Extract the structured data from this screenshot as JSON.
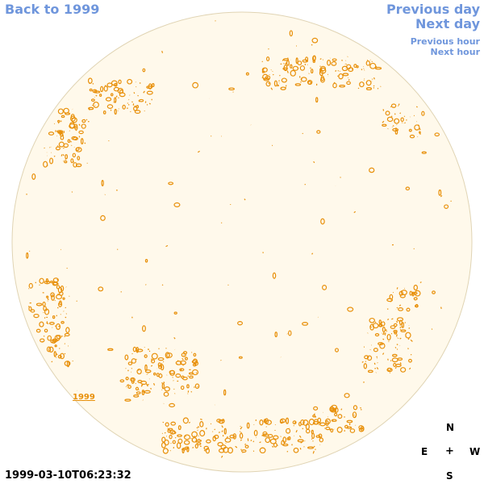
{
  "nav": {
    "back_label": "Back to 1999",
    "prev_day_label": "Previous day",
    "next_day_label": "Next day",
    "prev_hour_label": "Previous hour",
    "next_hour_label": "Next hour"
  },
  "timestamp": "1999-03-10T06:23:32",
  "compass": {
    "north": "N",
    "south": "S",
    "east": "E",
    "west": "W",
    "center": "+"
  },
  "region_label": "1999",
  "colors": {
    "disk_fill": "#fff9eb",
    "disk_stroke": "#e0d4b4",
    "contour": "#e8900a",
    "link": "#6f96dc"
  }
}
